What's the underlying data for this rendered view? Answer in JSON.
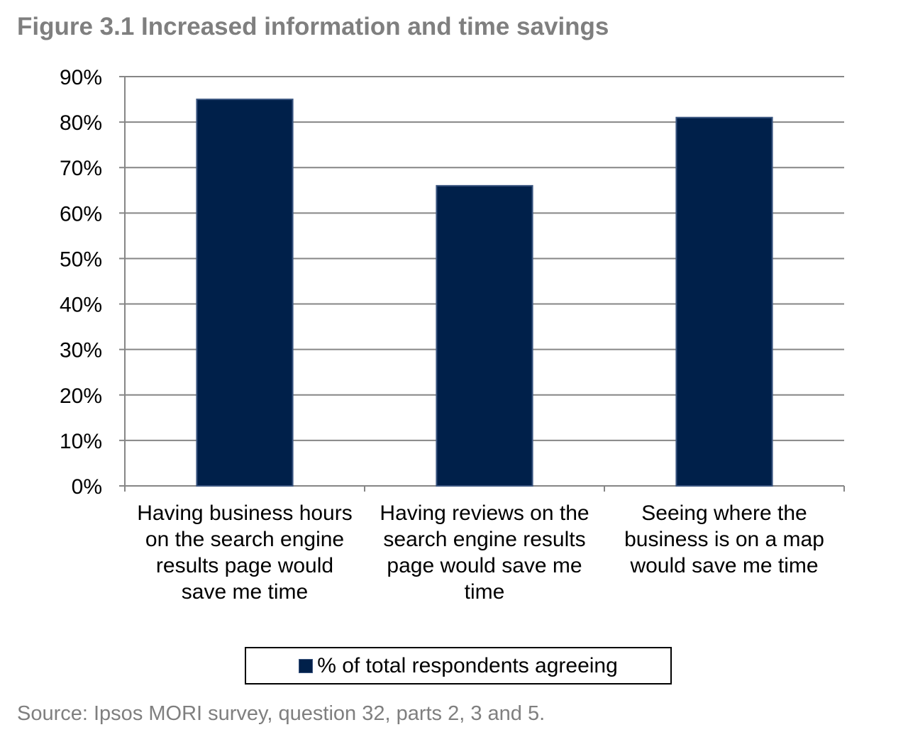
{
  "figure": {
    "title": "Figure 3.1  Increased information and time savings",
    "source": "Source: Ipsos MORI survey, question 32, parts 2, 3 and 5."
  },
  "chart_data": {
    "type": "bar",
    "title": "Figure 3.1  Increased information and time savings",
    "xlabel": "",
    "ylabel": "",
    "categories": [
      [
        "Having business hours",
        "on the search engine",
        "results page would",
        "save me time"
      ],
      [
        "Having reviews  on the",
        "search engine results",
        "page would save me",
        "time"
      ],
      [
        "Seeing where  the",
        "business is on a map",
        "would save me time"
      ]
    ],
    "series": [
      {
        "name": "% of total respondents agreeing",
        "values": [
          85,
          66,
          81
        ],
        "color": "#00204a"
      }
    ],
    "ylim": [
      0,
      90
    ],
    "yticks": [
      0,
      10,
      20,
      30,
      40,
      50,
      60,
      70,
      80,
      90
    ],
    "ytick_labels": [
      "0%",
      "10%",
      "20%",
      "30%",
      "40%",
      "50%",
      "60%",
      "70%",
      "80%",
      "90%"
    ],
    "grid": true,
    "legend_position": "bottom",
    "colors": {
      "bar": "#00204a",
      "bar_edge": "#3a5580",
      "grid": "#868686",
      "axis": "#868686"
    }
  }
}
